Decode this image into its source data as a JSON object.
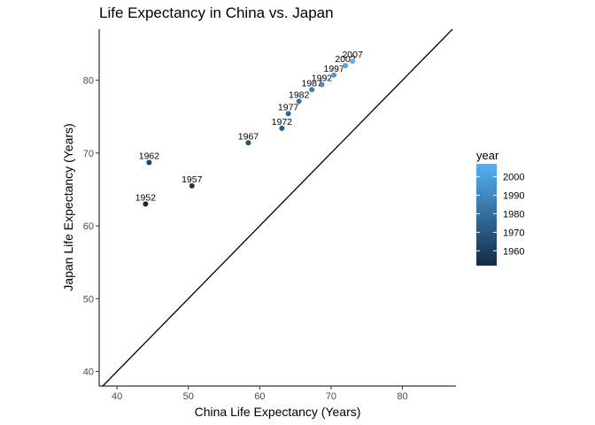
{
  "chart_data": {
    "type": "scatter",
    "title": "Life Expectancy in China vs. Japan",
    "xlabel": "China Life Expectancy (Years)",
    "ylabel": "Japan Life Expectancy (Years)",
    "xlim": [
      37.5,
      87.5
    ],
    "ylim": [
      38,
      87
    ],
    "xticks": [
      40,
      50,
      60,
      70,
      80
    ],
    "yticks": [
      40,
      50,
      60,
      70,
      80
    ],
    "reference_line": "y = x",
    "grid": false,
    "points": [
      {
        "label": "1952",
        "year": 1952,
        "x": 44.0,
        "y": 63.0
      },
      {
        "label": "1957",
        "year": 1957,
        "x": 50.5,
        "y": 65.5
      },
      {
        "label": "1962",
        "year": 1962,
        "x": 44.5,
        "y": 68.7
      },
      {
        "label": "1967",
        "year": 1967,
        "x": 58.4,
        "y": 71.4
      },
      {
        "label": "1972",
        "year": 1972,
        "x": 63.1,
        "y": 73.4
      },
      {
        "label": "1977",
        "year": 1977,
        "x": 64.0,
        "y": 75.4
      },
      {
        "label": "1982",
        "year": 1982,
        "x": 65.5,
        "y": 77.1
      },
      {
        "label": "1987",
        "year": 1987,
        "x": 67.3,
        "y": 78.7
      },
      {
        "label": "1992",
        "year": 1992,
        "x": 68.7,
        "y": 79.4
      },
      {
        "label": "1997",
        "year": 1997,
        "x": 70.4,
        "y": 80.7
      },
      {
        "label": "2002",
        "year": 2002,
        "x": 72.0,
        "y": 82.0
      },
      {
        "label": "2007",
        "year": 2007,
        "x": 73.0,
        "y": 82.6
      }
    ],
    "legend": {
      "title": "year",
      "placement": "right",
      "range": [
        1952,
        2007
      ],
      "ticks": [
        1960,
        1970,
        1980,
        1990,
        2000
      ],
      "color_low": "#132B43",
      "color_high": "#56B1F7"
    }
  }
}
